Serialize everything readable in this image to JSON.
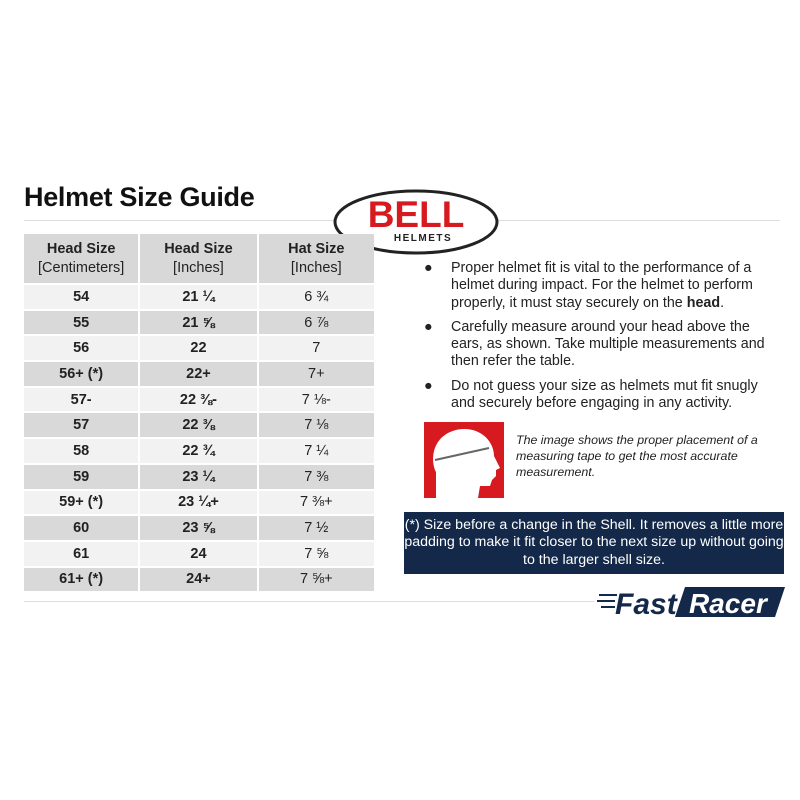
{
  "title": "Helmet Size Guide",
  "logo": {
    "brand": "BELL",
    "sub": "HELMETS"
  },
  "table": {
    "headers": [
      {
        "top": "Head Size",
        "bottom": "[Centimeters]"
      },
      {
        "top": "Head Size",
        "bottom": "[Inches]"
      },
      {
        "top": "Hat Size",
        "bottom": "[Inches]"
      }
    ],
    "rows": [
      [
        "54",
        "21 ¼",
        "6 ¾"
      ],
      [
        "55",
        "21 ⅝",
        "6 ⅞"
      ],
      [
        "56",
        "22",
        "7"
      ],
      [
        "56+ (*)",
        "22+",
        "7+"
      ],
      [
        "57-",
        "22 ⅜-",
        "7 ⅛-"
      ],
      [
        "57",
        "22 ⅜",
        "7 ⅛"
      ],
      [
        "58",
        "22 ¾",
        "7 ¼"
      ],
      [
        "59",
        "23 ¼",
        "7 ⅜"
      ],
      [
        "59+ (*)",
        "23 ¼+",
        "7 ⅜+"
      ],
      [
        "60",
        "23 ⅝",
        "7 ½"
      ],
      [
        "61",
        "24",
        "7 ⅝"
      ],
      [
        "61+ (*)",
        "24+",
        "7 ⅝+"
      ]
    ]
  },
  "bullets": [
    {
      "text": "Proper helmet fit is vital to the performance of a helmet during impact. For the helmet to perform properly, it must stay securely on the ",
      "bold": "head",
      "end": "."
    },
    {
      "text": "Carefully measure around your head above the ears, as shown. Take multiple measurements and then refer the table."
    },
    {
      "text": "Do not guess your size as helmets mut fit snugly and securely before engaging in any activity."
    }
  ],
  "bullet_glyph": "●",
  "caption": "The image shows the proper placement of a measuring tape to get the most accurate measurement.",
  "note": "(*) Size before a change in the Shell. It removes a little more padding to make it fit closer to the next size up without going to the larger shell size.",
  "footer_logo": {
    "text1": "Fast",
    "text2": "Racer"
  },
  "colors": {
    "navy": "#142849",
    "bell_red": "#d71920",
    "header_gray": "#d8d8d8"
  }
}
